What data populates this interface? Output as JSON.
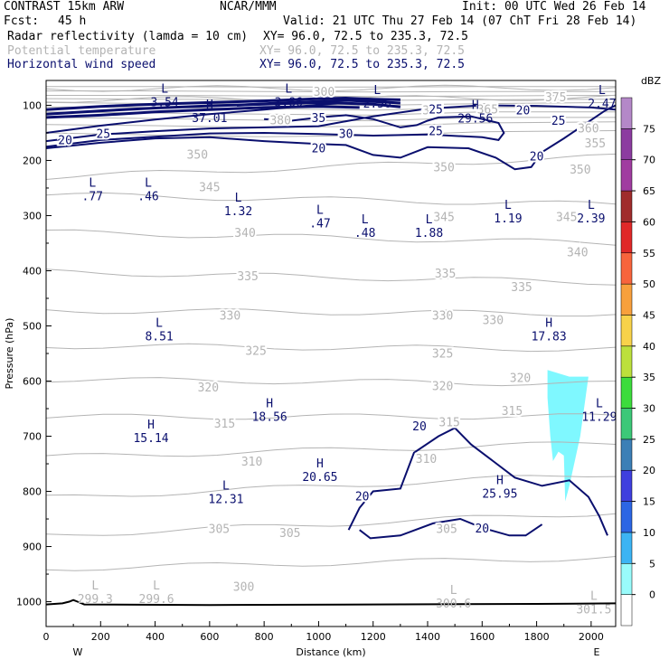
{
  "header": {
    "model": "CONTRAST 15km ARW",
    "center": "NCAR/MMM",
    "init": "Init: 00 UTC Wed 26 Feb 14",
    "fcst_label": "Fcst:",
    "fcst_value": "45 h",
    "valid": "Valid: 21 UTC Thu 27 Feb 14 (07 ChT Fri 28 Feb 14)"
  },
  "fields": [
    {
      "name": "Radar reflectivity (lamda = 10 cm)",
      "xy": "XY=  96.0, 72.5 to 235.3, 72.5"
    },
    {
      "name": "Potential temperature",
      "xy": "XY=  96.0, 72.5 to 235.3, 72.5"
    },
    {
      "name": "Horizontal wind speed",
      "xy": "XY=  96.0, 72.5 to 235.3, 72.5"
    }
  ],
  "chart_data": {
    "type": "vertical cross-section",
    "xlabel": "Distance (km)",
    "ylabel": "Pressure (hPa)",
    "xlim": [
      0,
      2090
    ],
    "ylim": [
      1045,
      55
    ],
    "x_ticks": [
      0,
      200,
      400,
      600,
      800,
      1000,
      1200,
      1400,
      1600,
      1800,
      2000
    ],
    "y_ticks": [
      100,
      200,
      300,
      400,
      500,
      600,
      700,
      800,
      900,
      1000
    ],
    "endpoints": {
      "left": "W",
      "right": "E"
    },
    "colors": {
      "wind": "#0a0f6e",
      "theta": "#b4b4b4",
      "ground": "#000000",
      "echo": "#7ff8ff"
    },
    "colorbar": {
      "unit": "dBZ",
      "levels": [
        0,
        5,
        10,
        15,
        20,
        25,
        30,
        35,
        40,
        45,
        50,
        55,
        60,
        65,
        70,
        75
      ],
      "colors": [
        "#ffffff",
        "#99fbfb",
        "#3cb4f4",
        "#2c66e4",
        "#3f3fde",
        "#3c7fb6",
        "#3cc878",
        "#3cdc3c",
        "#bce03c",
        "#f8d24a",
        "#f8a03c",
        "#f8643c",
        "#e02828",
        "#a02c2c",
        "#a03ca0",
        "#8c3ca0",
        "#b488c8"
      ]
    },
    "theta_contours": {
      "labels": [
        {
          "v": "300",
          "x": 1020,
          "p": 76
        },
        {
          "v": "375",
          "x": 1870,
          "p": 86
        },
        {
          "v": "365",
          "x": 1620,
          "p": 108
        },
        {
          "v": "385",
          "x": 1420,
          "p": 110
        },
        {
          "v": "360",
          "x": 1990,
          "p": 143
        },
        {
          "v": "355",
          "x": 2015,
          "p": 170
        },
        {
          "v": "380",
          "x": 860,
          "p": 128
        },
        {
          "v": "350",
          "x": 555,
          "p": 190
        },
        {
          "v": "350",
          "x": 1460,
          "p": 213
        },
        {
          "v": "350",
          "x": 1960,
          "p": 217
        },
        {
          "v": "345",
          "x": 600,
          "p": 249
        },
        {
          "v": "345",
          "x": 1460,
          "p": 303
        },
        {
          "v": "345",
          "x": 1910,
          "p": 303
        },
        {
          "v": "340",
          "x": 730,
          "p": 332
        },
        {
          "v": "340",
          "x": 1950,
          "p": 367
        },
        {
          "v": "335",
          "x": 740,
          "p": 411
        },
        {
          "v": "335",
          "x": 1465,
          "p": 406
        },
        {
          "v": "335",
          "x": 1745,
          "p": 430
        },
        {
          "v": "330",
          "x": 675,
          "p": 482
        },
        {
          "v": "330",
          "x": 1455,
          "p": 482
        },
        {
          "v": "330",
          "x": 1640,
          "p": 490
        },
        {
          "v": "325",
          "x": 770,
          "p": 546
        },
        {
          "v": "325",
          "x": 1455,
          "p": 551
        },
        {
          "v": "320",
          "x": 595,
          "p": 612
        },
        {
          "v": "320",
          "x": 1455,
          "p": 610
        },
        {
          "v": "320",
          "x": 1740,
          "p": 595
        },
        {
          "v": "315",
          "x": 655,
          "p": 678
        },
        {
          "v": "315",
          "x": 1480,
          "p": 675
        },
        {
          "v": "315",
          "x": 1710,
          "p": 655
        },
        {
          "v": "310",
          "x": 755,
          "p": 747
        },
        {
          "v": "310",
          "x": 1395,
          "p": 742
        },
        {
          "v": "305",
          "x": 635,
          "p": 869
        },
        {
          "v": "305",
          "x": 895,
          "p": 876
        },
        {
          "v": "305",
          "x": 1470,
          "p": 869
        },
        {
          "v": "300",
          "x": 725,
          "p": 974
        }
      ],
      "lines_p_at_x0": [
        70,
        90,
        230,
        262,
        330,
        402,
        472,
        536,
        597,
        665,
        738,
        812,
        880,
        940
      ],
      "lines_p_at_xend": [
        68,
        86,
        193,
        280,
        350,
        421,
        478,
        542,
        605,
        664,
        712,
        768,
        838,
        920
      ]
    },
    "wind_contour_labels": [
      {
        "v": "35",
        "x": 1000,
        "p": 122
      },
      {
        "v": "25",
        "x": 1430,
        "p": 107
      },
      {
        "v": "25",
        "x": 1430,
        "p": 146
      },
      {
        "v": "20",
        "x": 1750,
        "p": 108
      },
      {
        "v": "25",
        "x": 1880,
        "p": 127
      },
      {
        "v": "20",
        "x": 70,
        "p": 162
      },
      {
        "v": "25",
        "x": 210,
        "p": 151
      },
      {
        "v": "30",
        "x": 1100,
        "p": 151
      },
      {
        "v": "20",
        "x": 1000,
        "p": 177
      },
      {
        "v": "20",
        "x": 1800,
        "p": 192
      },
      {
        "v": "20",
        "x": 1370,
        "p": 681
      },
      {
        "v": "20",
        "x": 1160,
        "p": 808
      },
      {
        "v": "20",
        "x": 1600,
        "p": 866
      }
    ],
    "wind_extrema": [
      {
        "k": "L",
        "v": "3.54",
        "x": 435,
        "p": 85
      },
      {
        "k": "L",
        "v": "3.86",
        "x": 890,
        "p": 85
      },
      {
        "k": "L",
        "v": "2.56",
        "x": 1215,
        "p": 88
      },
      {
        "k": "L",
        "v": "2.47",
        "x": 2040,
        "p": 88
      },
      {
        "k": "H",
        "v": "37.01",
        "x": 600,
        "p": 114
      },
      {
        "k": "H",
        "v": "29.56",
        "x": 1575,
        "p": 115
      },
      {
        "k": "L",
        "v": ".77",
        "x": 170,
        "p": 256
      },
      {
        "k": "L",
        "v": ".46",
        "x": 375,
        "p": 256
      },
      {
        "k": "L",
        "v": "1.32",
        "x": 705,
        "p": 283
      },
      {
        "k": "L",
        "v": ".47",
        "x": 1005,
        "p": 305
      },
      {
        "k": "L",
        "v": ".48",
        "x": 1170,
        "p": 322
      },
      {
        "k": "L",
        "v": "1.88",
        "x": 1405,
        "p": 322
      },
      {
        "k": "L",
        "v": "1.19",
        "x": 1695,
        "p": 296
      },
      {
        "k": "L",
        "v": "2.39",
        "x": 2000,
        "p": 296
      },
      {
        "k": "L",
        "v": "8.51",
        "x": 415,
        "p": 510
      },
      {
        "k": "H",
        "v": "17.83",
        "x": 1845,
        "p": 510
      },
      {
        "k": "H",
        "v": "18.56",
        "x": 820,
        "p": 656
      },
      {
        "k": "L",
        "v": "11.29",
        "x": 2030,
        "p": 656
      },
      {
        "k": "H",
        "v": "15.14",
        "x": 385,
        "p": 694
      },
      {
        "k": "H",
        "v": "20.65",
        "x": 1005,
        "p": 765
      },
      {
        "k": "L",
        "v": "12.31",
        "x": 660,
        "p": 805
      },
      {
        "k": "H",
        "v": "25.95",
        "x": 1665,
        "p": 795
      }
    ],
    "theta_extrema": [
      {
        "k": "L",
        "v": "299.3",
        "x": 180,
        "p": 986
      },
      {
        "k": "L",
        "v": "299.6",
        "x": 405,
        "p": 986
      },
      {
        "k": "L",
        "v": "300.6",
        "x": 1495,
        "p": 994
      },
      {
        "k": "L",
        "v": "301.5",
        "x": 2010,
        "p": 1005
      }
    ],
    "wind_lines": [
      [
        [
          0,
          150
        ],
        [
          200,
          137
        ],
        [
          400,
          126
        ],
        [
          600,
          116
        ],
        [
          800,
          108
        ],
        [
          1000,
          99
        ],
        [
          1100,
          96
        ],
        [
          1150,
          98
        ]
      ],
      [
        [
          0,
          165
        ],
        [
          200,
          153
        ],
        [
          400,
          147
        ],
        [
          600,
          142
        ],
        [
          800,
          140
        ],
        [
          1000,
          138
        ],
        [
          1200,
          120
        ],
        [
          1400,
          106
        ],
        [
          1600,
          100
        ],
        [
          1800,
          101
        ],
        [
          2000,
          104
        ],
        [
          2090,
          108
        ]
      ],
      [
        [
          0,
          175
        ],
        [
          200,
          163
        ],
        [
          400,
          157
        ],
        [
          600,
          151
        ],
        [
          800,
          150
        ],
        [
          1000,
          152
        ],
        [
          1200,
          155
        ],
        [
          1400,
          153
        ],
        [
          1600,
          158
        ],
        [
          1660,
          163
        ],
        [
          1680,
          150
        ],
        [
          1660,
          132
        ],
        [
          1560,
          120
        ],
        [
          1440,
          122
        ],
        [
          1400,
          128
        ],
        [
          1360,
          136
        ],
        [
          1300,
          140
        ],
        [
          1200,
          125
        ],
        [
          1100,
          118
        ],
        [
          1000,
          122
        ],
        [
          900,
          128
        ],
        [
          800,
          125
        ]
      ],
      [
        [
          0,
          178
        ],
        [
          200,
          168
        ],
        [
          400,
          160
        ],
        [
          600,
          158
        ],
        [
          800,
          165
        ],
        [
          1000,
          170
        ],
        [
          1100,
          172
        ],
        [
          1200,
          190
        ],
        [
          1300,
          195
        ],
        [
          1400,
          176
        ],
        [
          1550,
          178
        ],
        [
          1650,
          195
        ],
        [
          1720,
          216
        ],
        [
          1780,
          212
        ],
        [
          1820,
          185
        ],
        [
          1900,
          160
        ],
        [
          1960,
          140
        ],
        [
          2050,
          110
        ],
        [
          2090,
          100
        ]
      ],
      [
        [
          1110,
          870
        ],
        [
          1150,
          830
        ],
        [
          1200,
          800
        ],
        [
          1300,
          795
        ],
        [
          1350,
          730
        ],
        [
          1440,
          700
        ],
        [
          1500,
          685
        ],
        [
          1560,
          715
        ],
        [
          1640,
          745
        ],
        [
          1720,
          775
        ],
        [
          1820,
          790
        ],
        [
          1920,
          780
        ],
        [
          1990,
          810
        ],
        [
          2030,
          845
        ],
        [
          2060,
          880
        ]
      ],
      [
        [
          1150,
          870
        ],
        [
          1190,
          885
        ],
        [
          1300,
          880
        ],
        [
          1420,
          858
        ],
        [
          1520,
          850
        ],
        [
          1600,
          866
        ],
        [
          1700,
          880
        ],
        [
          1760,
          880
        ],
        [
          1820,
          860
        ]
      ]
    ],
    "wind_core_lines": [
      [
        [
          0,
          108
        ],
        [
          200,
          102
        ],
        [
          400,
          98
        ],
        [
          600,
          95
        ],
        [
          800,
          92
        ],
        [
          1000,
          88
        ],
        [
          1100,
          87
        ],
        [
          1200,
          89
        ],
        [
          1300,
          90
        ]
      ],
      [
        [
          700,
          100
        ],
        [
          850,
          96
        ],
        [
          1000,
          93
        ],
        [
          1100,
          91
        ],
        [
          1200,
          93
        ],
        [
          1300,
          96
        ]
      ],
      [
        [
          0,
          116
        ],
        [
          200,
          110
        ],
        [
          400,
          105
        ],
        [
          600,
          101
        ],
        [
          800,
          98
        ],
        [
          1000,
          95
        ],
        [
          1200,
          98
        ],
        [
          1300,
          103
        ]
      ],
      [
        [
          0,
          122
        ],
        [
          200,
          118
        ],
        [
          400,
          112
        ],
        [
          600,
          108
        ],
        [
          800,
          104
        ],
        [
          1000,
          102
        ],
        [
          1150,
          104
        ]
      ]
    ],
    "theta_upper": [
      [
        [
          0,
          66
        ],
        [
          400,
          66
        ],
        [
          800,
          67
        ],
        [
          1200,
          67
        ],
        [
          1600,
          66
        ],
        [
          2090,
          66
        ]
      ],
      [
        [
          0,
          74
        ],
        [
          400,
          74
        ],
        [
          800,
          75
        ],
        [
          1200,
          76
        ],
        [
          1600,
          75
        ],
        [
          2090,
          75
        ]
      ],
      [
        [
          0,
          82
        ],
        [
          400,
          82
        ],
        [
          800,
          83
        ],
        [
          1200,
          84
        ],
        [
          1600,
          83
        ],
        [
          2090,
          82
        ]
      ],
      [
        [
          0,
          88
        ],
        [
          400,
          89
        ],
        [
          800,
          90
        ],
        [
          1200,
          91
        ],
        [
          1600,
          90
        ],
        [
          2090,
          89
        ]
      ],
      [
        [
          0,
          95
        ],
        [
          400,
          97
        ],
        [
          800,
          98
        ],
        [
          1200,
          100
        ],
        [
          1600,
          97
        ],
        [
          2090,
          95
        ]
      ],
      [
        [
          0,
          103
        ],
        [
          400,
          104
        ],
        [
          800,
          106
        ],
        [
          1200,
          109
        ],
        [
          1600,
          104
        ],
        [
          2090,
          103
        ]
      ],
      [
        [
          0,
          112
        ],
        [
          400,
          114
        ],
        [
          800,
          116
        ],
        [
          1200,
          118
        ],
        [
          1600,
          112
        ],
        [
          2090,
          112
        ]
      ],
      [
        [
          0,
          122
        ],
        [
          400,
          124
        ],
        [
          800,
          127
        ],
        [
          1200,
          128
        ],
        [
          1600,
          122
        ],
        [
          2090,
          122
        ]
      ],
      [
        [
          0,
          135
        ],
        [
          400,
          137
        ],
        [
          800,
          140
        ],
        [
          1200,
          138
        ],
        [
          1600,
          132
        ],
        [
          2090,
          130
        ]
      ],
      [
        [
          0,
          150
        ],
        [
          400,
          154
        ],
        [
          800,
          157
        ],
        [
          1200,
          155
        ],
        [
          1600,
          148
        ],
        [
          2090,
          146
        ]
      ]
    ],
    "ground": [
      [
        0,
        1005
      ],
      [
        60,
        1003
      ],
      [
        85,
        1000
      ],
      [
        100,
        997
      ],
      [
        115,
        1000
      ],
      [
        140,
        1005
      ],
      [
        600,
        1006
      ],
      [
        1200,
        1005
      ],
      [
        1800,
        1004
      ],
      [
        2090,
        1003
      ]
    ],
    "echo_polygon": [
      [
        1840,
        580
      ],
      [
        1920,
        592
      ],
      [
        1990,
        592
      ],
      [
        1960,
        700
      ],
      [
        1920,
        790
      ],
      [
        1905,
        818
      ],
      [
        1900,
        735
      ],
      [
        1880,
        728
      ],
      [
        1860,
        745
      ],
      [
        1850,
        700
      ],
      [
        1840,
        630
      ]
    ]
  }
}
